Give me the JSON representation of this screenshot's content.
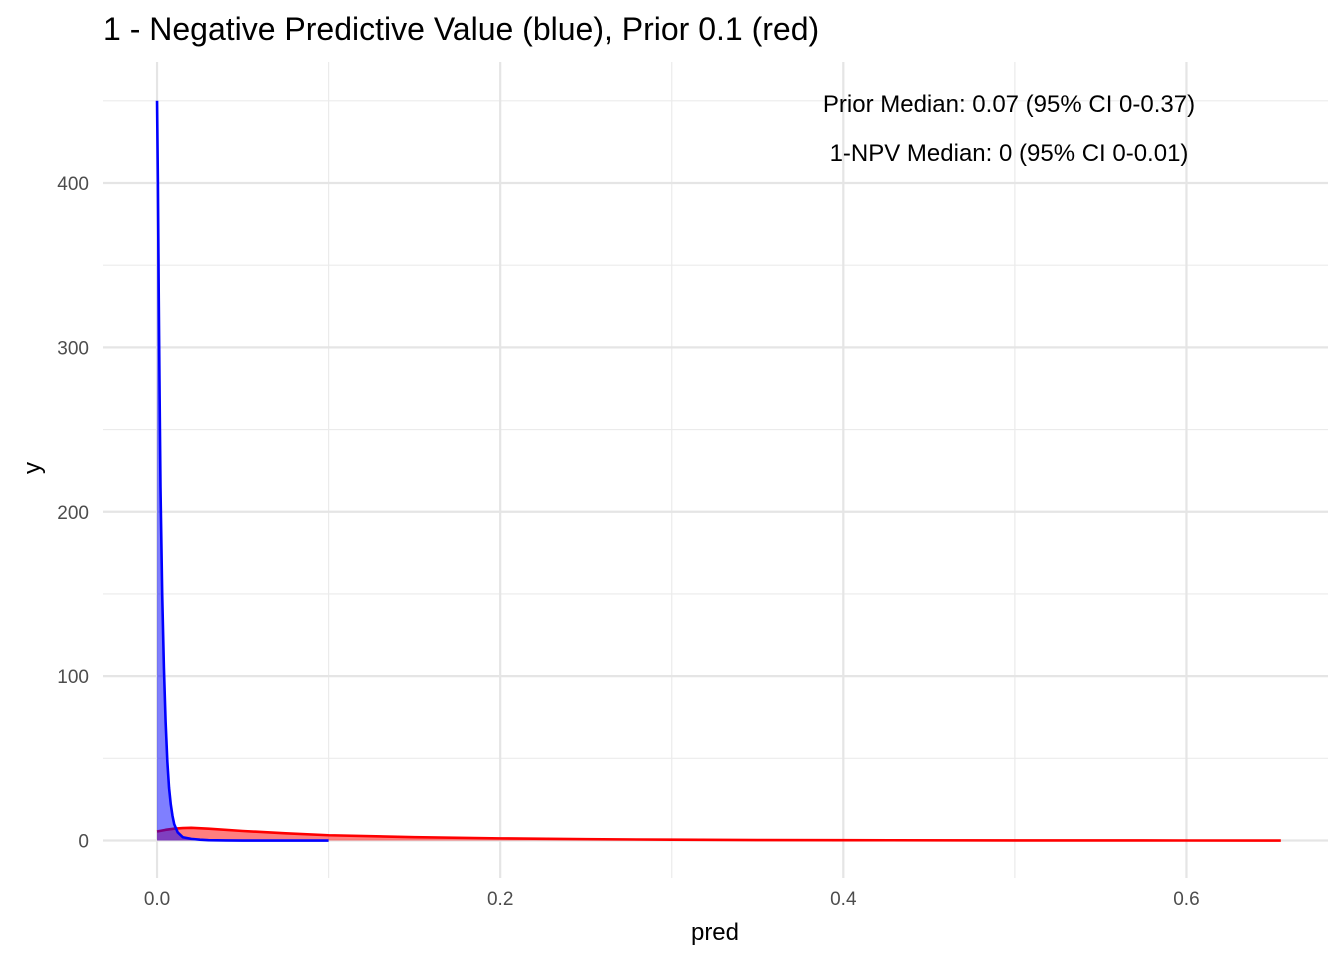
{
  "chart_data": {
    "type": "area",
    "title": "1 - Negative Predictive Value (blue), Prior 0.1 (red)",
    "xlabel": "pred",
    "ylabel": "y",
    "xlim": [
      -0.0315,
      0.6825
    ],
    "ylim": [
      -22.8,
      473.6
    ],
    "x_ticks": [
      0.0,
      0.2,
      0.4,
      0.6
    ],
    "x_tick_labels": [
      "0.0",
      "0.2",
      "0.4",
      "0.6"
    ],
    "y_ticks": [
      0,
      100,
      200,
      300,
      400
    ],
    "y_tick_labels": [
      "0",
      "100",
      "200",
      "300",
      "400"
    ],
    "grid": true,
    "annotations": [
      "Prior Median: 0.07 (95% CI 0-0.37)",
      "1-NPV Median: 0 (95% CI 0-0.01)"
    ],
    "series": [
      {
        "color": "#ff0000",
        "fill": "#ff0000",
        "fill_opacity": 0.5,
        "x": [
          0.0,
          0.005,
          0.01,
          0.015,
          0.02,
          0.03,
          0.05,
          0.075,
          0.1,
          0.15,
          0.2,
          0.25,
          0.3,
          0.35,
          0.4,
          0.5,
          0.6,
          0.655
        ],
        "y": [
          5.5,
          6.5,
          7.2,
          7.6,
          7.7,
          7.2,
          5.8,
          4.4,
          3.2,
          2.0,
          1.3,
          0.8,
          0.5,
          0.3,
          0.2,
          0.05,
          0.01,
          0.0
        ]
      },
      {
        "color": "#0000ff",
        "fill": "#0000ff",
        "fill_opacity": 0.5,
        "x": [
          0.0,
          0.0005,
          0.001,
          0.0015,
          0.002,
          0.003,
          0.004,
          0.005,
          0.006,
          0.007,
          0.008,
          0.009,
          0.01,
          0.012,
          0.015,
          0.02,
          0.025,
          0.03,
          0.04,
          0.05,
          0.1
        ],
        "y": [
          450,
          400,
          330,
          270,
          215,
          150,
          105,
          72,
          48,
          32,
          22,
          15,
          10,
          5,
          2,
          1,
          0.5,
          0.2,
          0.05,
          0.0,
          0.0
        ]
      }
    ]
  }
}
